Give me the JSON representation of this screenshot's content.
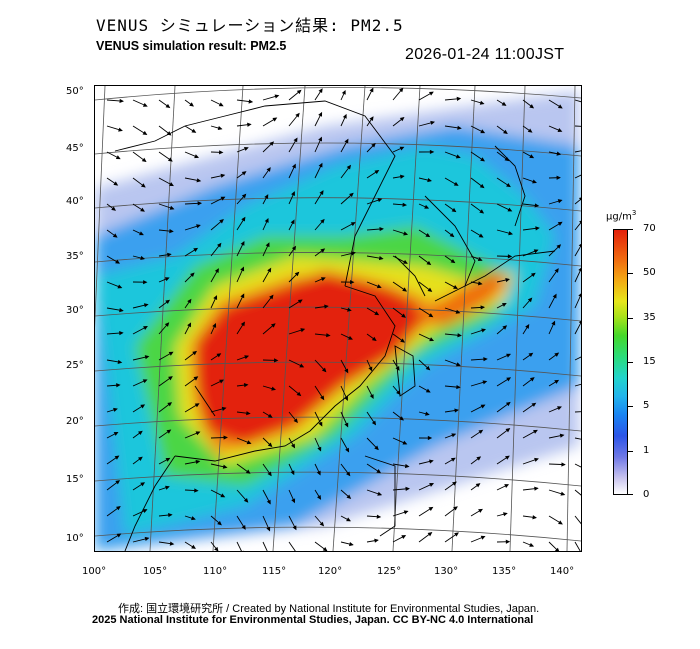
{
  "title_ja": "VENUS シミュレーション結果: PM2.5",
  "title_en": "VENUS simulation result: PM2.5",
  "timestamp": "2026-01-24 11:00JST",
  "map": {
    "lat_labels": [
      "50°",
      "45°",
      "40°",
      "35°",
      "30°",
      "25°",
      "20°",
      "15°",
      "10°"
    ],
    "lon_labels": [
      "100°",
      "105°",
      "110°",
      "115°",
      "120°",
      "125°",
      "130°",
      "135°",
      "140°"
    ]
  },
  "colorbar": {
    "unit": "μg/m",
    "unit_sup": "3",
    "ticks": [
      "70",
      "50",
      "35",
      "15",
      "5",
      "1",
      "0"
    ]
  },
  "credit_ja": "作成: 国立環境研究所 / Created by National Institute for Environmental Studies, Japan.",
  "credit_en": "2025 National Institute for Environmental Studies, Japan. CC BY-NC 4.0 International"
}
